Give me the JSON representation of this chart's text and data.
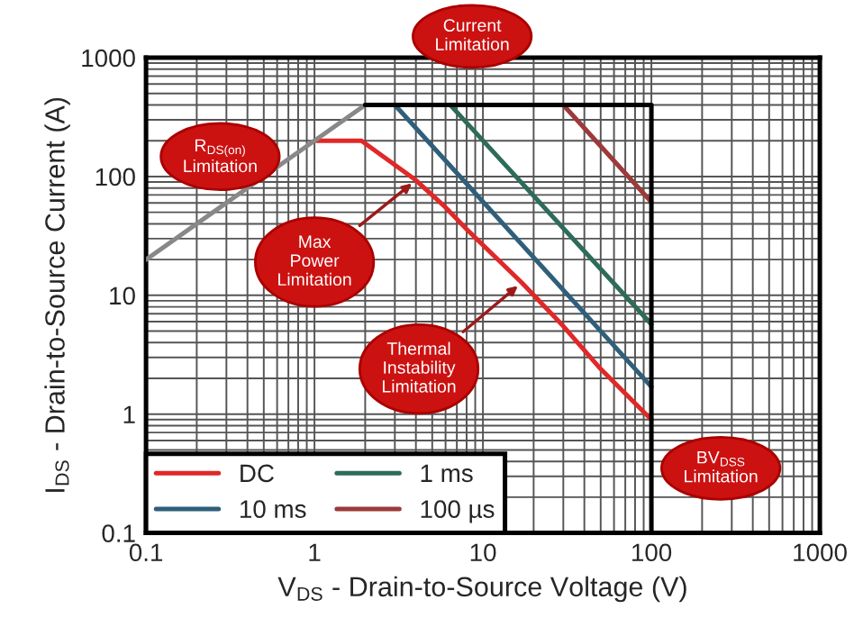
{
  "chart_data": {
    "type": "line",
    "xlabel": "V$_{DS}$ - Drain-to-Source Voltage (V)",
    "ylabel": "I$_{DS}$ - Drain-to-Source Current (A)",
    "log": "xy",
    "xlim": [
      0.1,
      1000
    ],
    "ylim": [
      0.1,
      1000
    ],
    "xticks": [
      0.1,
      1,
      10,
      100,
      1000
    ],
    "yticks": [
      0.1,
      1,
      10,
      100,
      1000
    ],
    "grid": true,
    "legend": "bottom left",
    "marker": "none",
    "line_style": "solid",
    "series": [
      {
        "name": "DC",
        "color": "#e02828",
        "x": [
          1,
          1.9,
          4,
          6,
          8,
          17,
          30,
          50,
          100
        ],
        "values": [
          200,
          200,
          93,
          55,
          36,
          12.8,
          5.5,
          2.4,
          0.9
        ]
      },
      {
        "name": "10 ms",
        "color": "#2f5f7a",
        "x": [
          3,
          100
        ],
        "values": [
          400,
          1.7
        ]
      },
      {
        "name": "1 ms",
        "color": "#2e6b5a",
        "x": [
          6.4,
          100
        ],
        "values": [
          400,
          5.7
        ]
      },
      {
        "name": "100 µs",
        "color": "#9c3a3a",
        "x": [
          30,
          100
        ],
        "values": [
          400,
          61
        ]
      },
      {
        "color": "#888888",
        "x": [
          0.1,
          2
        ],
        "values": [
          20,
          400
        ]
      },
      {
        "color": "#000000",
        "x": [
          2,
          100,
          100
        ],
        "values": [
          400,
          400,
          0.1
        ]
      }
    ],
    "annotations": [
      "Current\nLimitation",
      "R$_{DS(on)}$\nLimitation",
      {
        "text": "Max\nPower\nLimitation",
        "x": 4,
        "y": 93
      },
      {
        "text": "Thermal\nInstability\nLimitation",
        "x": 17,
        "y": 12.8
      },
      "BV$_{DSS}$\nLimitation"
    ]
  }
}
